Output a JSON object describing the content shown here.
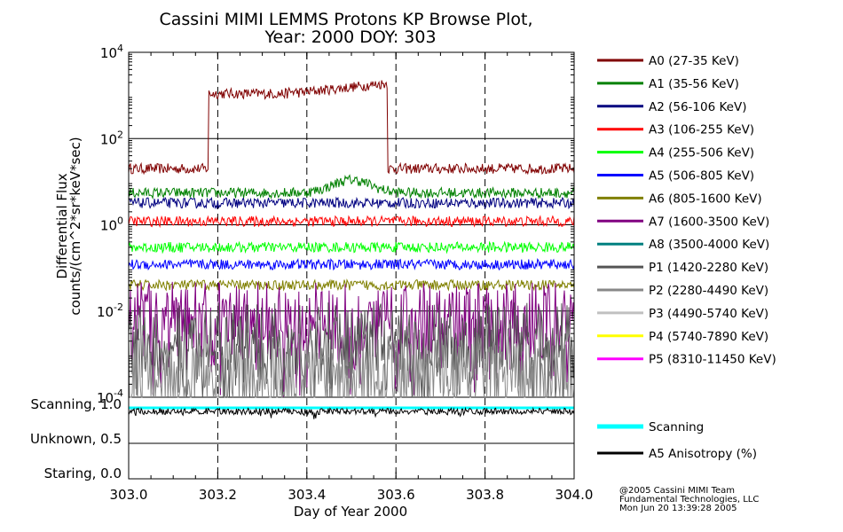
{
  "chart_data": {
    "type": "line",
    "title": "Cassini MIMI LEMMS Protons KP Browse Plot,",
    "subtitle": "Year: 2000 DOY: 303",
    "xlabel": "Day of Year 2000",
    "ylabel_line1": "Differential Flux",
    "ylabel_line2": "counts/(cm^2*sr*keV*sec)",
    "x_ticks": [
      "303.0",
      "303.2",
      "303.4",
      "303.6",
      "303.8",
      "304.0"
    ],
    "x_range": [
      303.0,
      304.0
    ],
    "y_scale": "log",
    "y_range": [
      0.0001,
      10000
    ],
    "y_ticks": [
      {
        "base": "10",
        "exp": "4"
      },
      {
        "base": "10",
        "exp": "2"
      },
      {
        "base": "10",
        "exp": "0"
      },
      {
        "base": "10",
        "exp": "-2"
      },
      {
        "base": "10",
        "exp": "-4"
      }
    ],
    "lower_panel_labels": [
      "Scanning, 1.0",
      "Unknown, 0.5",
      "Staring, 0.0"
    ],
    "series": [
      {
        "name": "A0 (27-35 KeV)",
        "color": "#800000",
        "baseline": 20,
        "plateau": {
          "start": 303.18,
          "end": 303.58,
          "value": 1100,
          "peak": 1900
        }
      },
      {
        "name": "A1 (35-56 KeV)",
        "color": "#008000",
        "baseline": 5.5,
        "bump": {
          "center": 303.5,
          "value": 11
        }
      },
      {
        "name": "A2 (56-106 KeV)",
        "color": "#000080",
        "baseline": 3.2
      },
      {
        "name": "A3 (106-255 KeV)",
        "color": "#ff0000",
        "baseline": 1.2
      },
      {
        "name": "A4 (255-506 KeV)",
        "color": "#00ff00",
        "baseline": 0.3
      },
      {
        "name": "A5 (506-805 KeV)",
        "color": "#0000ff",
        "baseline": 0.12
      },
      {
        "name": "A6 (805-1600 KeV)",
        "color": "#808000",
        "baseline": 0.04
      },
      {
        "name": "A7 (1600-3500 KeV)",
        "color": "#800080",
        "baseline": 0.006
      },
      {
        "name": "A8 (3500-4000 KeV)",
        "color": "#008080",
        "baseline": null
      },
      {
        "name": "P1 (1420-2280 KeV)",
        "color": "#555555",
        "baseline": 0.002
      },
      {
        "name": "P2 (2280-4490 KeV)",
        "color": "#888888",
        "baseline": 0.0004
      },
      {
        "name": "P3 (4490-5740 KeV)",
        "color": "#c0c0c0",
        "baseline": null
      },
      {
        "name": "P4 (5740-7890 KeV)",
        "color": "#ffff00",
        "baseline": null
      },
      {
        "name": "P5 (8310-11450 KeV)",
        "color": "#ff00ff",
        "baseline": null
      }
    ],
    "lower_series": [
      {
        "name": "Scanning",
        "color": "#00ffff",
        "value": 1.0
      },
      {
        "name": "A5 Anisotropy (%)",
        "color": "#000000",
        "value": 0.95
      }
    ]
  },
  "footer": {
    "line1": "@2005 Cassini MIMI Team",
    "line2": "Fundamental Technologies, LLC",
    "line3": "Mon Jun 20 13:39:28 2005"
  }
}
